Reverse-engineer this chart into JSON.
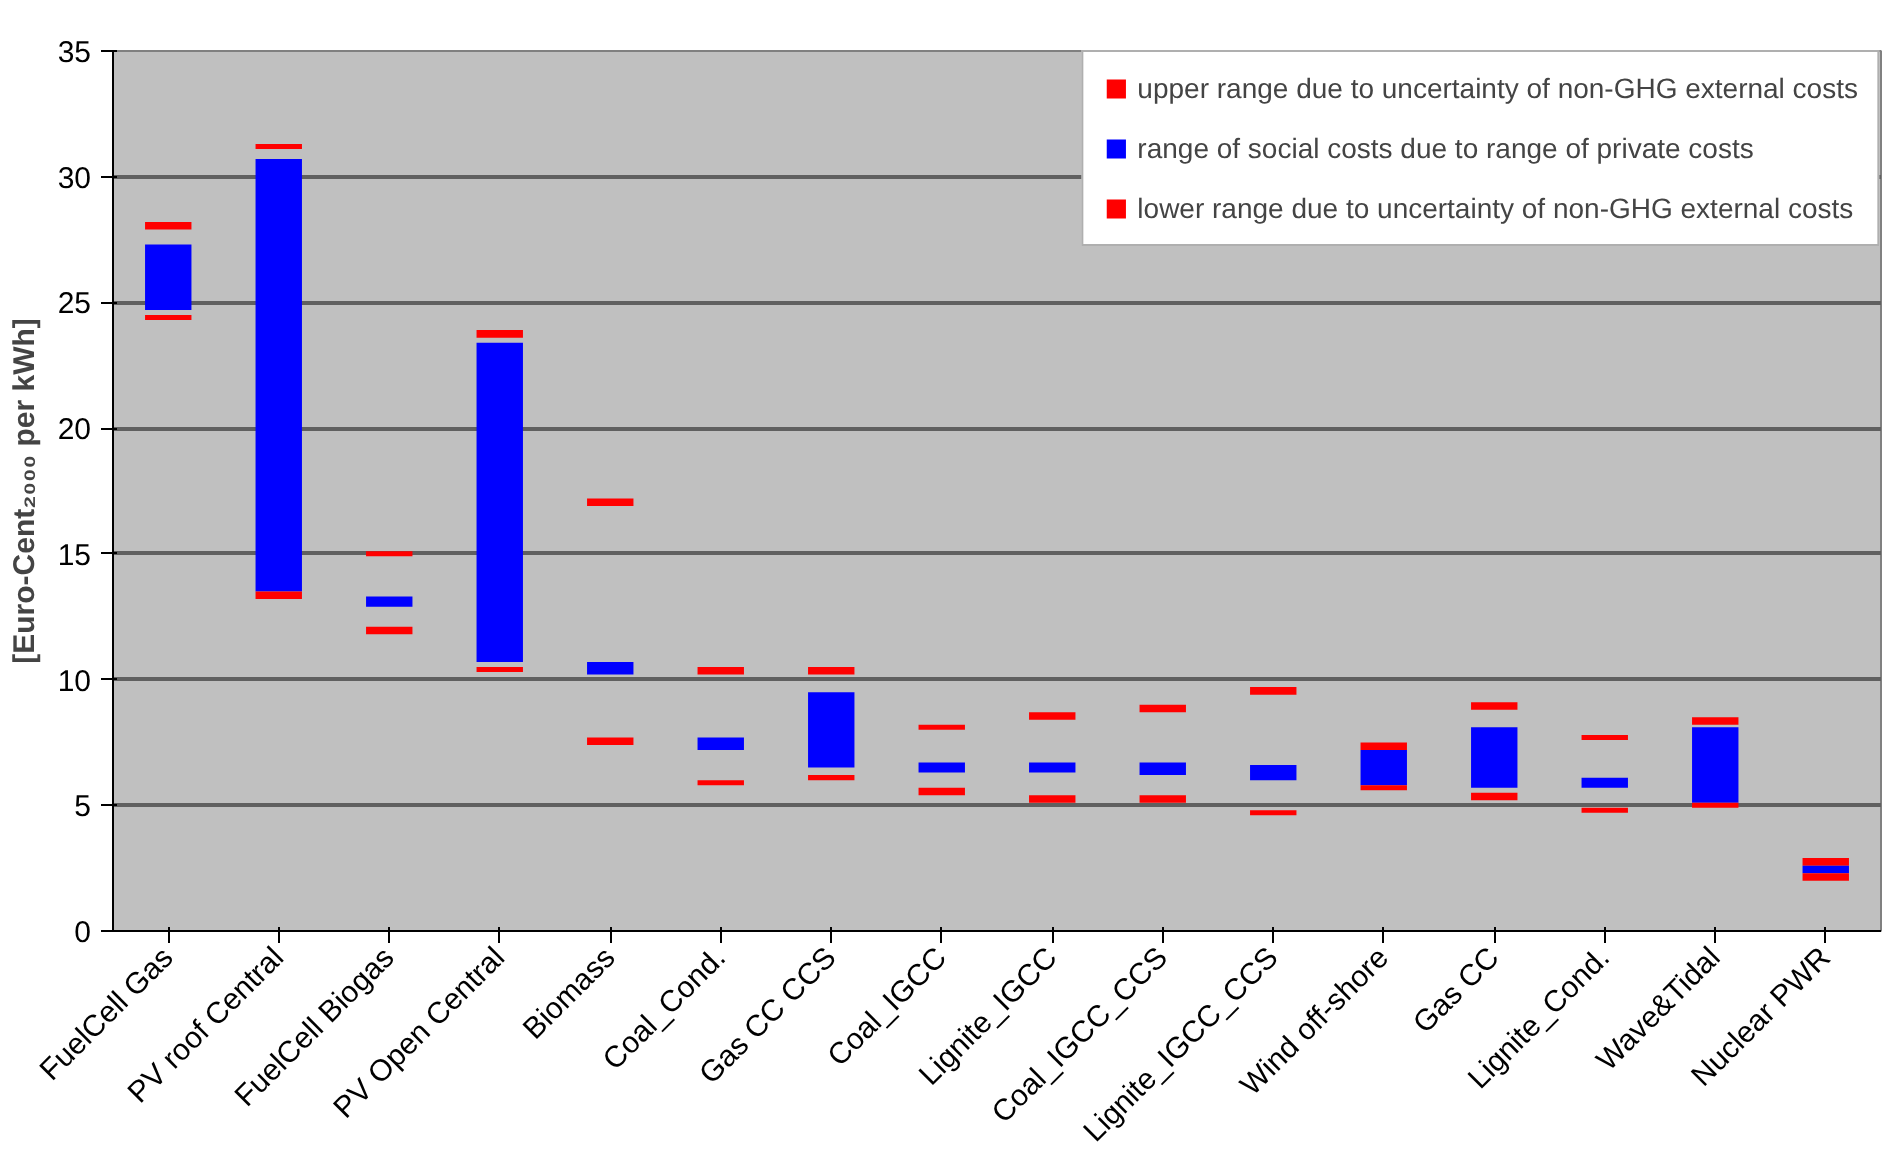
{
  "chart_data": {
    "type": "bar",
    "ylabel": "[Euro-Cent₂₀₀₀ per kWh]",
    "categories": [
      "FuelCell Gas",
      "PV roof Central",
      "FuelCell Biogas",
      "PV Open Central",
      "Biomass",
      "Coal_Cond.",
      "Gas CC CCS",
      "Coal_IGCC",
      "Lignite_IGCC",
      "Coal_IGCC_CCS",
      "Lignite_IGCC_CCS",
      "Wind off-shore",
      "Gas CC",
      "Lignite_Cond.",
      "Wave&Tidal",
      "Nuclear PWR"
    ],
    "series": [
      {
        "name": "upper range due to uncertainty of non-GHG external costs",
        "color": "#ff0000",
        "base": [
          27.9,
          31.1,
          14.9,
          23.6,
          16.9,
          10.2,
          10.2,
          8.0,
          8.4,
          8.7,
          9.4,
          7.2,
          8.8,
          7.6,
          8.2,
          2.6
        ],
        "values": [
          0.3,
          0.2,
          0.2,
          0.3,
          0.3,
          0.3,
          0.3,
          0.2,
          0.3,
          0.3,
          0.3,
          0.3,
          0.3,
          0.2,
          0.3,
          0.3
        ]
      },
      {
        "name": "range of social costs due to range of private costs",
        "color": "#0000ff",
        "base": [
          24.7,
          13.5,
          12.9,
          10.7,
          10.2,
          7.2,
          6.5,
          6.3,
          6.3,
          6.2,
          6.0,
          5.8,
          5.7,
          5.7,
          5.1,
          2.3
        ],
        "values": [
          2.6,
          17.2,
          0.4,
          12.7,
          0.5,
          0.5,
          3.0,
          0.4,
          0.4,
          0.5,
          0.6,
          1.4,
          2.4,
          0.4,
          3.0,
          0.3
        ]
      },
      {
        "name": "lower range due to uncertainty of non-GHG external costs",
        "color": "#ff0000",
        "base": [
          24.3,
          13.2,
          11.8,
          10.3,
          7.4,
          5.8,
          6.0,
          5.4,
          5.1,
          5.1,
          4.6,
          5.6,
          5.2,
          4.7,
          4.9,
          2.0
        ],
        "values": [
          0.2,
          0.3,
          0.3,
          0.2,
          0.3,
          0.2,
          0.2,
          0.3,
          0.3,
          0.3,
          0.2,
          0.2,
          0.3,
          0.2,
          0.2,
          0.3
        ]
      }
    ],
    "ylim": [
      0,
      35
    ],
    "yticks": [
      0,
      5,
      10,
      15,
      20,
      25,
      30,
      35
    ],
    "grid": "y",
    "legend": "top right"
  }
}
